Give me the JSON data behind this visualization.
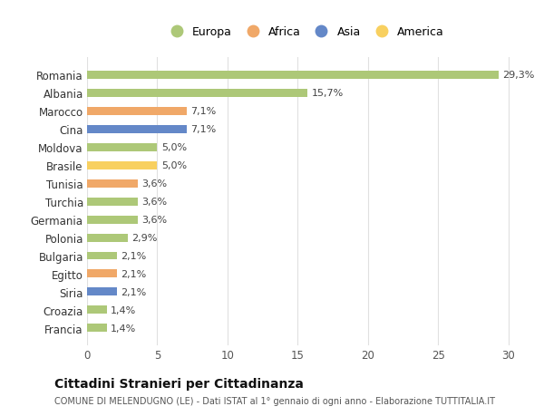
{
  "countries": [
    "Romania",
    "Albania",
    "Marocco",
    "Cina",
    "Moldova",
    "Brasile",
    "Tunisia",
    "Turchia",
    "Germania",
    "Polonia",
    "Bulgaria",
    "Egitto",
    "Siria",
    "Croazia",
    "Francia"
  ],
  "values": [
    29.3,
    15.7,
    7.1,
    7.1,
    5.0,
    5.0,
    3.6,
    3.6,
    3.6,
    2.9,
    2.1,
    2.1,
    2.1,
    1.4,
    1.4
  ],
  "labels": [
    "29,3%",
    "15,7%",
    "7,1%",
    "7,1%",
    "5,0%",
    "5,0%",
    "3,6%",
    "3,6%",
    "3,6%",
    "2,9%",
    "2,1%",
    "2,1%",
    "2,1%",
    "1,4%",
    "1,4%"
  ],
  "continents": [
    "Europa",
    "Europa",
    "Africa",
    "Asia",
    "Europa",
    "America",
    "Africa",
    "Europa",
    "Europa",
    "Europa",
    "Europa",
    "Africa",
    "Asia",
    "Europa",
    "Europa"
  ],
  "colors": {
    "Europa": "#adc878",
    "Africa": "#f0a868",
    "Asia": "#6488c8",
    "America": "#f8d060"
  },
  "xlim": [
    0,
    31
  ],
  "xticks": [
    0,
    5,
    10,
    15,
    20,
    25,
    30
  ],
  "background_color": "#ffffff",
  "grid_color": "#e0e0e0",
  "title": "Cittadini Stranieri per Cittadinanza",
  "subtitle": "COMUNE DI MELENDUGNO (LE) - Dati ISTAT al 1° gennaio di ogni anno - Elaborazione TUTTITALIA.IT",
  "bar_height": 0.45,
  "bar_alpha": 1.0,
  "legend_order": [
    "Europa",
    "Africa",
    "Asia",
    "America"
  ]
}
